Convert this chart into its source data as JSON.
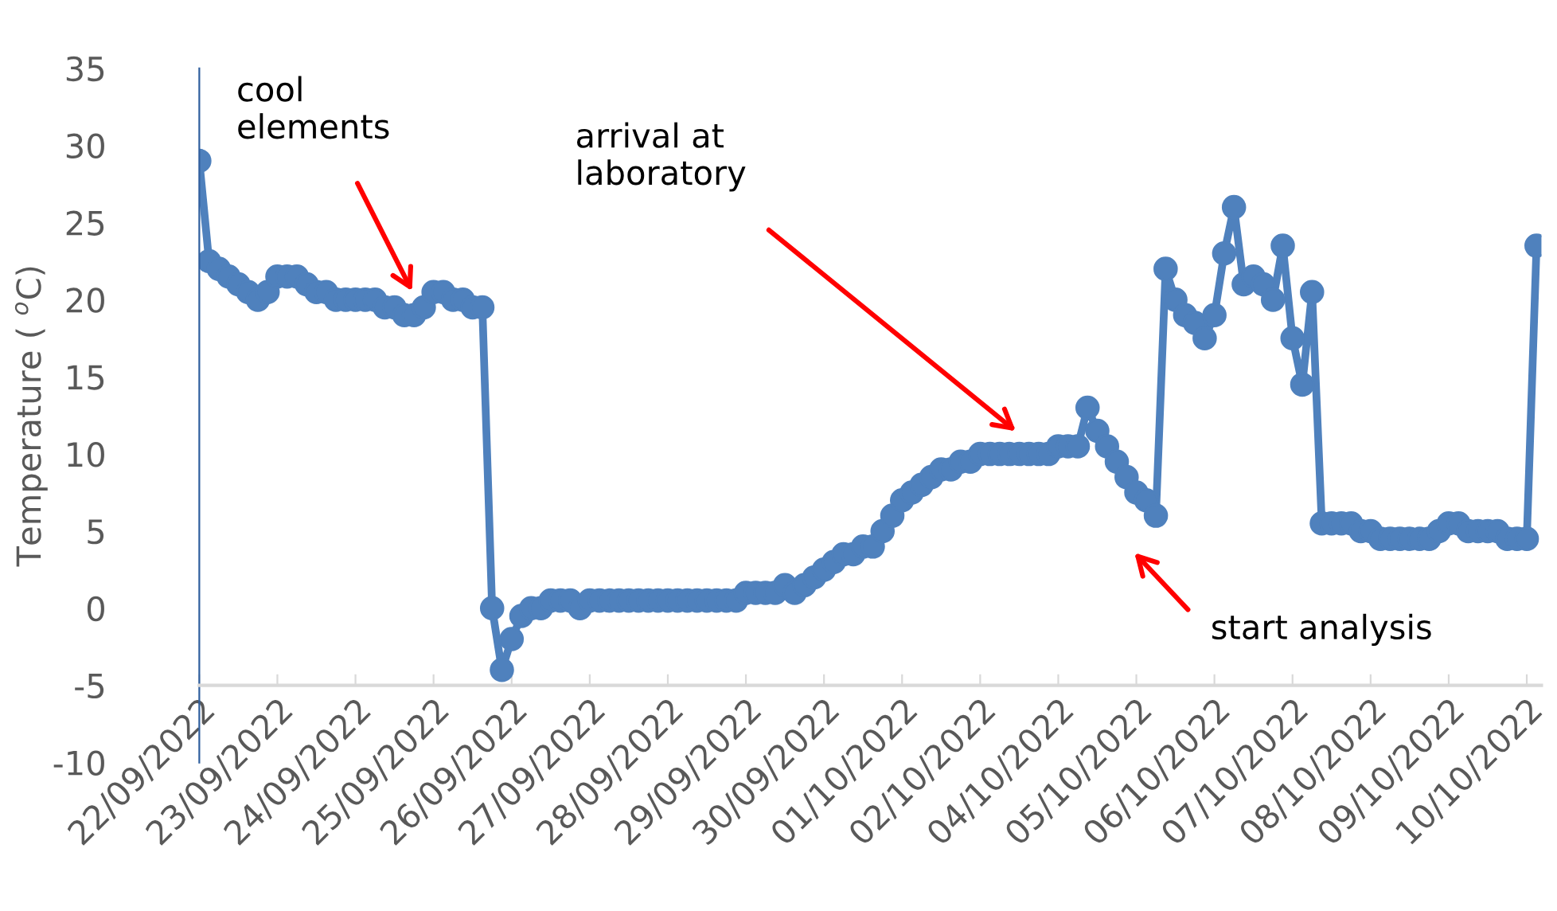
{
  "chart_data": {
    "type": "line",
    "ylabel": "Temperature ( $^{o}$C)",
    "categories": [
      "22/09/2022",
      null,
      null,
      null,
      null,
      null,
      null,
      null,
      "23/09/2022",
      null,
      null,
      null,
      null,
      null,
      null,
      null,
      "24/09/2022",
      null,
      null,
      null,
      null,
      null,
      null,
      null,
      "25/09/2022",
      null,
      null,
      null,
      null,
      null,
      null,
      null,
      "26/09/2022",
      null,
      null,
      null,
      null,
      null,
      null,
      null,
      "27/09/2022",
      null,
      null,
      null,
      null,
      null,
      null,
      null,
      "28/09/2022",
      null,
      null,
      null,
      null,
      null,
      null,
      null,
      "29/09/2022",
      null,
      null,
      null,
      null,
      null,
      null,
      null,
      "30/09/2022",
      null,
      null,
      null,
      null,
      null,
      null,
      null,
      "01/10/2022",
      null,
      null,
      null,
      null,
      null,
      null,
      null,
      "02/10/2022",
      null,
      null,
      null,
      null,
      null,
      null,
      null,
      "04/10/2022",
      null,
      null,
      null,
      null,
      null,
      null,
      null,
      "05/10/2022",
      null,
      null,
      null,
      null,
      null,
      null,
      null,
      "06/10/2022",
      null,
      null,
      null,
      null,
      null,
      null,
      null,
      "07/10/2022",
      null,
      null,
      null,
      null,
      null,
      null,
      null,
      "08/10/2022",
      null,
      null,
      null,
      null,
      null,
      null,
      null,
      "09/10/2022",
      null,
      null,
      null,
      null,
      null,
      null,
      null,
      "10/10/2022",
      null
    ],
    "series": [
      {
        "color": "#4f81bd",
        "values": [
          29,
          22.5,
          22,
          21.5,
          21,
          20.5,
          20,
          20.5,
          21.5,
          21.5,
          21.5,
          21,
          20.5,
          20.5,
          20,
          20,
          20,
          20,
          20,
          19.5,
          19.5,
          19,
          19,
          19.5,
          20.5,
          20.5,
          20,
          20,
          19.5,
          19.5,
          0,
          -4,
          -2,
          -0.5,
          0,
          0,
          0.5,
          0.5,
          0.5,
          0,
          0.5,
          0.5,
          0.5,
          0.5,
          0.5,
          0.5,
          0.5,
          0.5,
          0.5,
          0.5,
          0.5,
          0.5,
          0.5,
          0.5,
          0.5,
          0.5,
          1,
          1,
          1,
          1,
          1.5,
          1,
          1.5,
          2,
          2.5,
          3,
          3.5,
          3.5,
          4,
          4,
          5,
          6,
          7,
          7.5,
          8,
          8.5,
          9,
          9,
          9.5,
          9.5,
          10,
          10,
          10,
          10,
          10,
          10,
          10,
          10,
          10.5,
          10.5,
          10.5,
          13,
          11.5,
          10.5,
          9.5,
          8.5,
          7.5,
          7,
          6,
          22,
          20,
          19,
          18.5,
          17.5,
          19,
          23,
          26,
          21,
          21.5,
          21,
          20,
          23.5,
          17.5,
          14.5,
          20.5,
          5.5,
          5.5,
          5.5,
          5.5,
          5,
          5,
          4.5,
          4.5,
          4.5,
          4.5,
          4.5,
          4.5,
          5,
          5.5,
          5.5,
          5,
          5,
          5,
          5,
          4.5,
          4.5,
          4.5,
          23.5
        ]
      }
    ],
    "ylim": [
      -10,
      35
    ],
    "yticks": [
      -10,
      -5,
      0,
      5,
      10,
      15,
      20,
      25,
      30,
      35
    ],
    "marker": "circle",
    "line_style": "solid",
    "annotations": [
      "cool\nelements",
      "arrival at\nlaboratory",
      "start analysis"
    ]
  }
}
